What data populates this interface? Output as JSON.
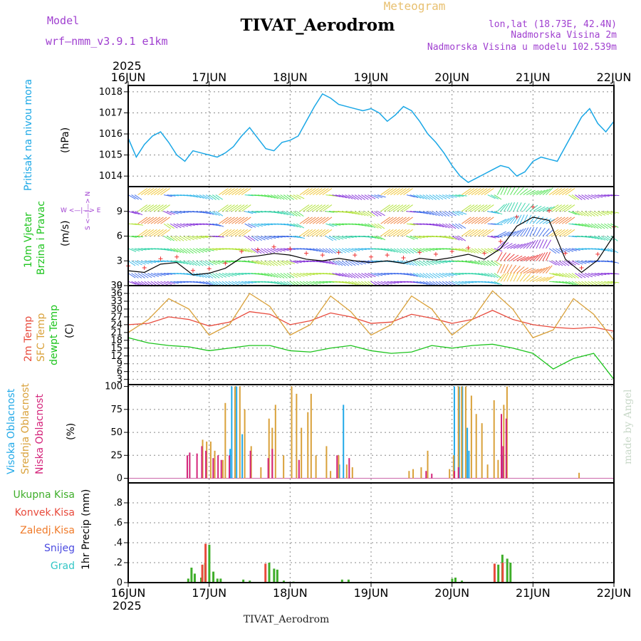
{
  "header": {
    "model_label": "Model",
    "model_name": "wrf—nmm_v3.9.1  e1km",
    "title": "TIVAT_Aerodrom",
    "meteogram": "Meteogram",
    "lonlat": "lon,lat (18.73E, 42.4N)",
    "elevation": "Nadmorska Visina 2m",
    "model_elevation": "Nadmorska Visina u modelu 102.539m",
    "year_top": "2025",
    "year_bottom": "2025",
    "footer_station": "TIVAT_Aerodrom",
    "credit": "made by Angel"
  },
  "colors": {
    "pressure": "#1aa7e6",
    "temp2m": "#e84a3c",
    "sfc": "#d9a13a",
    "dew": "#1dc41d",
    "high_cloud": "#22a9e8",
    "mid_cloud": "#d9a13a",
    "low_cloud": "#d4237a",
    "total_rain": "#3fae2a",
    "conv_rain": "#e84a3c",
    "frz_rain": "#f07b2a",
    "snow": "#4a4ae0",
    "hail": "#33c6c6",
    "wind_label": "#a040d0",
    "wind_speed_line": "#000000",
    "gust_marks": "#ee3333"
  },
  "panel_labels": {
    "pressure": [
      "Pritisak na nivou mora"
    ],
    "pressure_unit": "(hPa)",
    "wind": [
      "10m Vjetar",
      "Brzina i Pravac"
    ],
    "wind_unit": "(m/s)",
    "compass": "W <—|—> E",
    "compass_v": "S <—|—> N",
    "temp": [
      "2m Temp",
      "SFC Temp",
      "dewpt Temp"
    ],
    "temp_unit": "(C)",
    "cloud": [
      "Visoka Oblacnost",
      "Srednja Oblacnost",
      "Niska Oblacnost"
    ],
    "cloud_unit": "(%)",
    "precip": [
      "Ukupna Kisa",
      "Konvek.Kisa",
      "Zaledj.Kisa",
      "Snijeg",
      "Grad"
    ],
    "precip_unit": "1hr Precip (mm)"
  },
  "chart_data": [
    {
      "type": "line",
      "panel": "pressure",
      "x_ticks": [
        "16JUN",
        "17JUN",
        "18JUN",
        "19JUN",
        "20JUN",
        "21JUN",
        "22JUN"
      ],
      "x": [
        0,
        0.1,
        0.2,
        0.3,
        0.4,
        0.5,
        0.6,
        0.7,
        0.8,
        0.9,
        1.0,
        1.1,
        1.2,
        1.3,
        1.4,
        1.5,
        1.6,
        1.7,
        1.8,
        1.9,
        2.0,
        2.1,
        2.2,
        2.3,
        2.4,
        2.5,
        2.6,
        2.7,
        2.8,
        2.9,
        3.0,
        3.1,
        3.2,
        3.3,
        3.4,
        3.5,
        3.6,
        3.7,
        3.8,
        3.9,
        4.0,
        4.1,
        4.2,
        4.3,
        4.4,
        4.5,
        4.6,
        4.7,
        4.8,
        4.9,
        5.0,
        5.1,
        5.2,
        5.3,
        5.4,
        5.5,
        5.6,
        5.7,
        5.8,
        5.9,
        6.0
      ],
      "series": [
        {
          "values": [
            1015.8,
            1014.9,
            1015.5,
            1015.9,
            1016.1,
            1015.6,
            1015.0,
            1014.7,
            1015.2,
            1015.1,
            1015.0,
            1014.9,
            1015.1,
            1015.4,
            1015.9,
            1016.3,
            1015.8,
            1015.3,
            1015.2,
            1015.6,
            1015.7,
            1015.9,
            1016.6,
            1017.3,
            1017.9,
            1017.7,
            1017.4,
            1017.3,
            1017.2,
            1017.1,
            1017.2,
            1017.0,
            1016.6,
            1016.9,
            1017.3,
            1017.1,
            1016.6,
            1016.0,
            1015.6,
            1015.1,
            1014.5,
            1014.0,
            1013.7,
            1013.9,
            1014.1,
            1014.3,
            1014.5,
            1014.4,
            1014.0,
            1014.2,
            1014.7,
            1014.9,
            1014.8,
            1014.7,
            1015.4,
            1016.1,
            1016.8,
            1017.2,
            1016.5,
            1016.1,
            1016.6
          ]
        }
      ],
      "ylim": [
        1013.5,
        1018.3
      ],
      "y_ticks": [
        1014,
        1015,
        1016,
        1017,
        1018
      ]
    },
    {
      "type": "line",
      "panel": "wind",
      "x": [
        0,
        0.2,
        0.4,
        0.6,
        0.8,
        1.0,
        1.2,
        1.4,
        1.6,
        1.8,
        2.0,
        2.2,
        2.4,
        2.6,
        2.8,
        3.0,
        3.2,
        3.4,
        3.6,
        3.8,
        4.0,
        4.2,
        4.4,
        4.6,
        4.8,
        5.0,
        5.2,
        5.4,
        5.6,
        5.8,
        6.0
      ],
      "series": [
        {
          "name": "speed",
          "values": [
            1.8,
            1.6,
            2.6,
            2.8,
            1.3,
            1.5,
            2.1,
            3.4,
            3.6,
            3.9,
            3.7,
            3.2,
            3.0,
            3.3,
            3.0,
            2.8,
            3.0,
            2.7,
            3.3,
            3.1,
            3.4,
            3.8,
            3.2,
            4.5,
            7.2,
            8.3,
            7.9,
            3.2,
            1.6,
            3.1,
            6.1
          ]
        }
      ],
      "ylim": [
        0,
        12
      ],
      "y_ticks": [
        0,
        3,
        6,
        9
      ]
    },
    {
      "type": "line",
      "panel": "temperature",
      "x": [
        0,
        0.25,
        0.5,
        0.75,
        1.0,
        1.25,
        1.5,
        1.75,
        2.0,
        2.25,
        2.5,
        2.75,
        3.0,
        3.25,
        3.5,
        3.75,
        4.0,
        4.25,
        4.5,
        4.75,
        5.0,
        5.25,
        5.5,
        5.75,
        6.0
      ],
      "series": [
        {
          "name": "2m Temp",
          "values": [
            24,
            24.5,
            27,
            26,
            23.5,
            25,
            29,
            28,
            24,
            25.5,
            28.5,
            27,
            24.5,
            25,
            28,
            26.5,
            24.5,
            26,
            29.5,
            26,
            24,
            23,
            22.5,
            23,
            21.5
          ]
        },
        {
          "name": "SFC Temp",
          "values": [
            21,
            26,
            34,
            30,
            20,
            24,
            36,
            31,
            20,
            24,
            35,
            29,
            20,
            24,
            35,
            30,
            20,
            26,
            37,
            30,
            19,
            22,
            34,
            28,
            18
          ]
        },
        {
          "name": "dewpt Temp",
          "values": [
            19,
            17,
            16,
            15.5,
            14,
            15,
            16,
            16,
            14,
            13.5,
            15,
            16,
            14,
            13,
            13.5,
            16,
            15,
            16,
            16.5,
            15,
            13,
            7,
            11,
            13,
            3
          ]
        }
      ],
      "ylim": [
        1,
        39
      ],
      "y_ticks": [
        3,
        6,
        9,
        12,
        15,
        18,
        21,
        24,
        27,
        30,
        33,
        36,
        39
      ]
    },
    {
      "type": "bar",
      "panel": "cloud",
      "ylim": [
        -5,
        102
      ],
      "y_ticks": [
        0,
        25,
        50,
        75,
        100
      ],
      "series": [
        {
          "name": "Visoka Oblacnost",
          "bars": [
            [
              1.25,
              32
            ],
            [
              1.27,
              100
            ],
            [
              1.33,
              100
            ],
            [
              1.4,
              48
            ],
            [
              2.6,
              15
            ],
            [
              2.65,
              80
            ],
            [
              4.02,
              100
            ],
            [
              4.08,
              100
            ],
            [
              4.12,
              100
            ],
            [
              4.18,
              55
            ],
            [
              4.2,
              30
            ],
            [
              4.62,
              25
            ]
          ]
        },
        {
          "name": "Srednja Oblacnost",
          "bars": [
            [
              0.9,
              42
            ],
            [
              0.95,
              40
            ],
            [
              1.0,
              40
            ],
            [
              1.05,
              30
            ],
            [
              1.15,
              20
            ],
            [
              1.18,
              82
            ],
            [
              1.3,
              100
            ],
            [
              1.36,
              100
            ],
            [
              1.42,
              75
            ],
            [
              1.5,
              35
            ],
            [
              1.62,
              12
            ],
            [
              1.72,
              65
            ],
            [
              1.76,
              55
            ],
            [
              1.8,
              80
            ],
            [
              1.9,
              25
            ],
            [
              2.0,
              100
            ],
            [
              2.06,
              92
            ],
            [
              2.12,
              55
            ],
            [
              2.2,
              72
            ],
            [
              2.24,
              92
            ],
            [
              2.3,
              25
            ],
            [
              2.43,
              35
            ],
            [
              2.48,
              8
            ],
            [
              2.58,
              25
            ],
            [
              2.68,
              15
            ],
            [
              2.75,
              12
            ],
            [
              3.45,
              8
            ],
            [
              3.5,
              10
            ],
            [
              3.6,
              12
            ],
            [
              3.68,
              30
            ],
            [
              3.95,
              10
            ],
            [
              4.0,
              25
            ],
            [
              4.06,
              100
            ],
            [
              4.1,
              100
            ],
            [
              4.15,
              100
            ],
            [
              4.22,
              90
            ],
            [
              4.28,
              70
            ],
            [
              4.35,
              60
            ],
            [
              4.42,
              15
            ],
            [
              4.5,
              85
            ],
            [
              4.55,
              20
            ],
            [
              4.62,
              80
            ],
            [
              4.66,
              100
            ],
            [
              5.55,
              6
            ]
          ]
        },
        {
          "name": "Niska Oblacnost",
          "bars": [
            [
              0.7,
              25
            ],
            [
              0.73,
              28
            ],
            [
              0.82,
              27
            ],
            [
              0.88,
              35
            ],
            [
              0.93,
              30
            ],
            [
              1.02,
              22
            ],
            [
              1.08,
              25
            ],
            [
              1.12,
              20
            ],
            [
              1.22,
              25
            ],
            [
              1.48,
              30
            ],
            [
              1.7,
              22
            ],
            [
              1.75,
              32
            ],
            [
              2.08,
              20
            ],
            [
              2.55,
              25
            ],
            [
              2.7,
              22
            ],
            [
              3.65,
              8
            ],
            [
              3.72,
              5
            ],
            [
              4.0,
              8
            ],
            [
              4.05,
              12
            ],
            [
              4.58,
              70
            ],
            [
              4.6,
              35
            ],
            [
              4.64,
              65
            ]
          ]
        }
      ]
    },
    {
      "type": "bar",
      "panel": "precip",
      "ylim": [
        0,
        1.0
      ],
      "y_ticks": [
        0,
        0.2,
        0.4,
        0.6,
        0.8
      ],
      "series": [
        {
          "name": "Ukupna Kisa",
          "bars": [
            [
              0.72,
              0.04
            ],
            [
              0.76,
              0.15
            ],
            [
              0.8,
              0.09
            ],
            [
              0.88,
              0.05
            ],
            [
              0.93,
              0.2
            ],
            [
              0.98,
              0.38
            ],
            [
              1.03,
              0.11
            ],
            [
              1.08,
              0.04
            ],
            [
              1.12,
              0.04
            ],
            [
              1.4,
              0.03
            ],
            [
              1.48,
              0.02
            ],
            [
              1.72,
              0.2
            ],
            [
              1.78,
              0.14
            ],
            [
              1.82,
              0.13
            ],
            [
              1.9,
              0.02
            ],
            [
              2.02,
              0.01
            ],
            [
              2.62,
              0.03
            ],
            [
              2.7,
              0.03
            ],
            [
              3.98,
              0.04
            ],
            [
              4.02,
              0.05
            ],
            [
              4.1,
              0.02
            ],
            [
              4.55,
              0.18
            ],
            [
              4.6,
              0.28
            ],
            [
              4.66,
              0.24
            ],
            [
              4.7,
              0.2
            ]
          ]
        },
        {
          "name": "Konvek.Kisa",
          "bars": [
            [
              0.92,
              0.18
            ],
            [
              0.96,
              0.39
            ],
            [
              1.7,
              0.19
            ],
            [
              4.53,
              0.19
            ],
            [
              4.63,
              0.2
            ]
          ]
        }
      ]
    }
  ]
}
